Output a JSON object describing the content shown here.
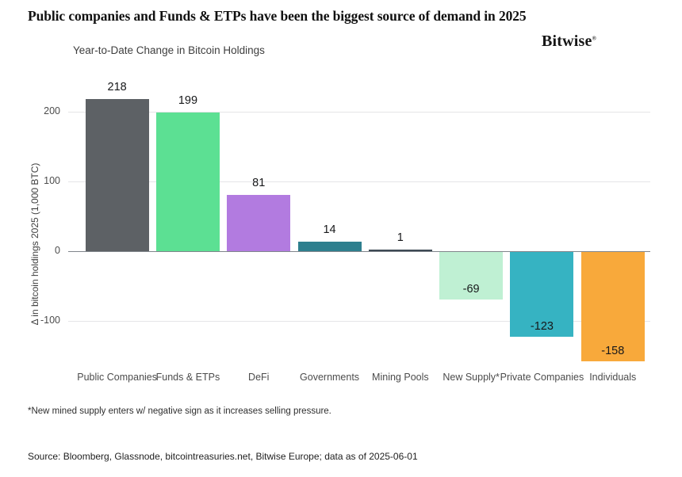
{
  "header": {
    "title": "Public companies and Funds & ETPs have been the biggest source of demand in 2025",
    "logo": "Bitwise",
    "logo_mark": "®"
  },
  "chart_data": {
    "type": "bar",
    "title": "Year-to-Date Change in Bitcoin Holdings",
    "xlabel": "",
    "ylabel": "Δ in bitcoin holdings 2025 (1,000 BTC)",
    "categories": [
      "Public Companies",
      "Funds & ETPs",
      "DeFi",
      "Governments",
      "Mining Pools",
      "New Supply*",
      "Private Companies",
      "Individuals"
    ],
    "values": [
      218,
      199,
      81,
      14,
      1,
      -69,
      -123,
      -158
    ],
    "bar_colors": [
      "#5D6165",
      "#5CE093",
      "#B27BE0",
      "#2E7F8E",
      "#3E4A54",
      "#BFF0D3",
      "#36B3C2",
      "#F8A93B"
    ],
    "yticks": [
      200,
      100,
      0,
      -100
    ],
    "ylim": [
      -175,
      240
    ],
    "grid": true,
    "legend": "none"
  },
  "footnote": "*New mined supply enters w/ negative sign as it increases selling pressure.",
  "source": "Source: Bloomberg, Glassnode, bitcointreasuries.net, Bitwise Europe; data as of 2025-06-01"
}
